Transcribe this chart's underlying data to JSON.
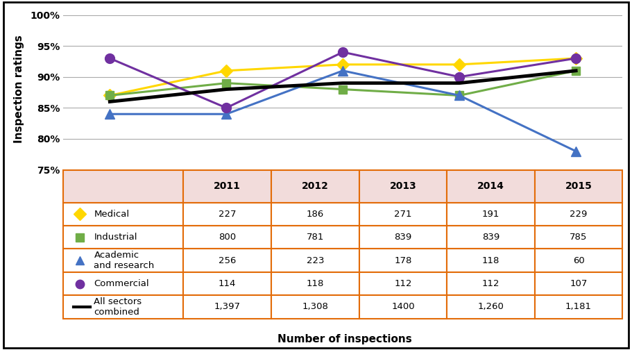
{
  "years": [
    2011,
    2012,
    2013,
    2014,
    2015
  ],
  "series": {
    "Medical": {
      "values": [
        87,
        91,
        92,
        92,
        93
      ],
      "color": "#FFD700",
      "marker": "D",
      "markersize": 9,
      "linewidth": 2.2,
      "zorder": 4
    },
    "Industrial": {
      "values": [
        87,
        89,
        88,
        87,
        91
      ],
      "color": "#70AD47",
      "marker": "s",
      "markersize": 9,
      "linewidth": 2.2,
      "zorder": 4
    },
    "Academic and research": {
      "values": [
        84,
        84,
        91,
        87,
        78
      ],
      "color": "#4472C4",
      "marker": "^",
      "markersize": 10,
      "linewidth": 2.2,
      "zorder": 4
    },
    "Commercial": {
      "values": [
        93,
        85,
        94,
        90,
        93
      ],
      "color": "#7030A0",
      "marker": "o",
      "markersize": 10,
      "linewidth": 2.2,
      "zorder": 4
    },
    "All sectors combined": {
      "values": [
        86,
        88,
        89,
        89,
        91
      ],
      "color": "#000000",
      "marker": "None",
      "markersize": 0,
      "linewidth": 3.5,
      "zorder": 5
    }
  },
  "ylim": [
    75,
    101
  ],
  "yticks": [
    75,
    80,
    85,
    90,
    95,
    100
  ],
  "ytick_labels": [
    "75%",
    "80%",
    "85%",
    "90%",
    "95%",
    "100%"
  ],
  "ylabel": "Inspection ratings",
  "xlabel": "Number of inspections",
  "table_header": [
    "",
    "2011",
    "2012",
    "2013",
    "2014",
    "2015"
  ],
  "table_row_labels": [
    "Medical",
    "Industrial",
    "Academic\nand research",
    "Commercial",
    "All sectors\ncombined"
  ],
  "table_data": [
    [
      "227",
      "186",
      "271",
      "191",
      "229"
    ],
    [
      "800",
      "781",
      "839",
      "839",
      "785"
    ],
    [
      "256",
      "223",
      "178",
      "118",
      "60"
    ],
    [
      "114",
      "118",
      "112",
      "112",
      "107"
    ],
    [
      "1,397",
      "1,308",
      "1400",
      "1,260",
      "1,181"
    ]
  ],
  "series_markers": [
    "D",
    "s",
    "^",
    "o",
    "none"
  ],
  "series_colors": [
    "#FFD700",
    "#70AD47",
    "#4472C4",
    "#7030A0",
    "#000000"
  ],
  "table_header_bg": "#F2DCDB",
  "table_border_color": "#E36C09",
  "outer_border_color": "#000000",
  "bg_color": "#FFFFFF",
  "plot_bg_color": "#FFFFFF",
  "grid_color": "#AAAAAA"
}
